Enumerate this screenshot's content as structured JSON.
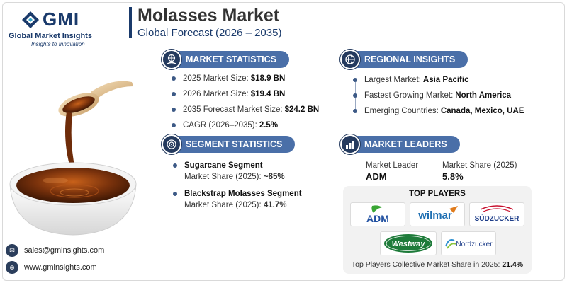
{
  "brand": {
    "logo_text": "GMI",
    "name": "Global Market Insights",
    "tagline": "Insights to Innovation"
  },
  "header": {
    "title": "Molasses Market",
    "subtitle": "Global Forecast (2026 – 2035)"
  },
  "market_statistics": {
    "heading": "MARKET STATISTICS",
    "icon": "globe-hand-icon",
    "items": [
      {
        "label": "2025 Market Size:",
        "value": "$18.9 BN"
      },
      {
        "label": "2026 Market Size:",
        "value": "$19.4 BN"
      },
      {
        "label": "2035 Forecast Market Size:",
        "value": "$24.2 BN"
      },
      {
        "label": "CAGR (2026–2035):",
        "value": "2.5%"
      }
    ]
  },
  "regional_insights": {
    "heading": "REGIONAL INSIGHTS",
    "icon": "globe-icon",
    "items": [
      {
        "label": "Largest Market:",
        "value": "Asia Pacific"
      },
      {
        "label": "Fastest Growing Market:",
        "value": "North America"
      },
      {
        "label": "Emerging Countries:",
        "value": "Canada, Mexico, UAE"
      }
    ]
  },
  "segment_statistics": {
    "heading": "SEGMENT STATISTICS",
    "icon": "target-icon",
    "items": [
      {
        "name": "Sugarcane Segment",
        "label": "Market Share (2025):",
        "value": "~85%"
      },
      {
        "name": "Blackstrap Molasses Segment",
        "label": "Market Share (2025):",
        "value": "41.7%"
      }
    ]
  },
  "market_leaders": {
    "heading": "MARKET LEADERS",
    "icon": "chart-bars-icon",
    "leader_label": "Market Leader",
    "leader_value": "ADM",
    "share_label": "Market Share (2025)",
    "share_value": "5.8%"
  },
  "top_players": {
    "heading": "TOP PLAYERS",
    "logos": [
      "ADM",
      "wilmar",
      "SÜDZUCKER",
      "Westway",
      "Nordzucker"
    ],
    "footer_label": "Top Players Collective Market Share in 2025:",
    "footer_value": "21.4%"
  },
  "contact": {
    "email": "sales@gminsights.com",
    "website": "www.gminsights.com"
  },
  "colors": {
    "navy": "#1a3a6b",
    "pill": "#4a6fa8",
    "icon_bg": "#243a5e",
    "molasses": "#6b2e0a",
    "adm_green": "#3aa635",
    "wilmar_blue": "#1f6fb2",
    "sudzucker_red": "#c8102e",
    "westway_green": "#1e7b3a"
  }
}
